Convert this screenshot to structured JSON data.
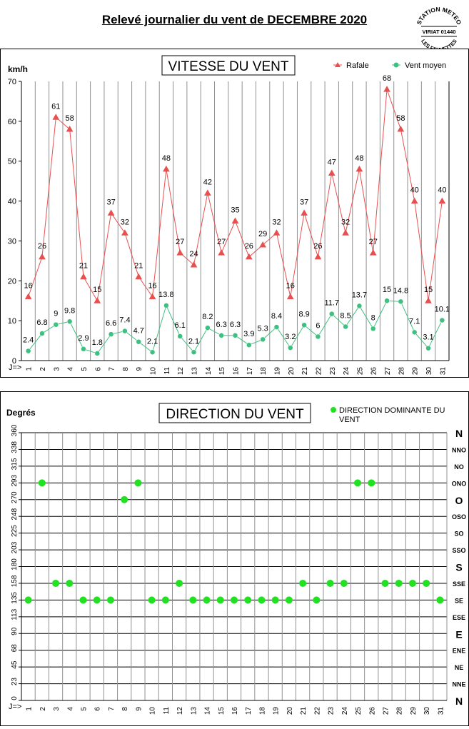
{
  "page_title": "Relevé journalier du vent de DECEMBRE 2020",
  "stamp": {
    "top": "STATION METEO",
    "middle": "VIRIAT 01440",
    "bottom": "LES FAUVETTES"
  },
  "colors": {
    "rafale": "#e85050",
    "vent_moyen": "#40c080",
    "direction": "#22e022",
    "grid": "#000000"
  },
  "chart_data": [
    {
      "type": "line",
      "title": "VITESSE DU VENT",
      "ylabel": "km/h",
      "xlabel": "J=>",
      "ylim": [
        0,
        70
      ],
      "yticks": [
        0,
        10,
        20,
        30,
        40,
        50,
        60,
        70
      ],
      "grid": "vertical lines per day",
      "legend_position": "top-right",
      "x": [
        1,
        2,
        3,
        4,
        5,
        6,
        7,
        8,
        9,
        10,
        11,
        12,
        13,
        14,
        15,
        16,
        17,
        18,
        19,
        20,
        21,
        22,
        23,
        24,
        25,
        26,
        27,
        28,
        29,
        30,
        31
      ],
      "series": [
        {
          "name": "Rafale",
          "marker": "triangle",
          "values": [
            16,
            26,
            61,
            58,
            21,
            15,
            37,
            32,
            21,
            16,
            48,
            27,
            24,
            42,
            27,
            35,
            26,
            29,
            32,
            16,
            37,
            26,
            47,
            32,
            48,
            27,
            68,
            58,
            40,
            15,
            40
          ],
          "labels": [
            "16",
            "26",
            "61",
            "58",
            "21",
            "15",
            "37",
            "32",
            "21",
            "16",
            "48",
            "27",
            "24",
            "42",
            "27",
            "35",
            "26",
            "29",
            "32",
            "16",
            "37",
            "26",
            "47",
            "32",
            "48",
            "27",
            "68",
            "58",
            "40",
            "15",
            "40"
          ]
        },
        {
          "name": "Vent moyen",
          "marker": "circle",
          "values": [
            2.4,
            6.8,
            9,
            9.8,
            2.9,
            1.8,
            6.6,
            7.4,
            4.7,
            2.1,
            13.8,
            6.1,
            2.1,
            8.2,
            6.3,
            6.3,
            3.9,
            5.3,
            8.4,
            3.2,
            8.9,
            6,
            11.7,
            8.5,
            13.7,
            8,
            15,
            14.8,
            7.1,
            3.1,
            10.1
          ],
          "labels": [
            "2.4",
            "6.8",
            "9",
            "9.8",
            "2.9",
            "1.8",
            "6.6",
            "7.4",
            "4.7",
            "2.1",
            "13.8",
            "6.1",
            "2.1",
            "8.2",
            "6.3",
            "6.3",
            "3.9",
            "5.3",
            "8.4",
            "3.2",
            "8.9",
            "6",
            "11.7",
            "8.5",
            "13.7",
            "8",
            "15",
            "14.8",
            "7.1",
            "3.1",
            "10.1"
          ]
        }
      ]
    },
    {
      "type": "scatter",
      "title": "DIRECTION DU VENT",
      "ylabel": "Degrés",
      "xlabel": "J=>",
      "ylim": [
        0,
        360
      ],
      "yticks": [
        0,
        23,
        45,
        68,
        90,
        113,
        135,
        158,
        180,
        203,
        225,
        248,
        270,
        293,
        315,
        338,
        360
      ],
      "ytick_values": [
        0,
        22.5,
        45,
        67.5,
        90,
        112.5,
        135,
        157.5,
        180,
        202.5,
        225,
        247.5,
        270,
        292.5,
        315,
        337.5,
        360
      ],
      "direction_labels": [
        "N",
        "NNE",
        "NE",
        "ENE",
        "E",
        "ESE",
        "SE",
        "SSE",
        "S",
        "SSO",
        "SO",
        "OSO",
        "O",
        "ONO",
        "NO",
        "NNO",
        "N"
      ],
      "grid": "horizontal and vertical",
      "legend_position": "top-right",
      "x": [
        1,
        2,
        3,
        4,
        5,
        6,
        7,
        8,
        9,
        10,
        11,
        12,
        13,
        14,
        15,
        16,
        17,
        18,
        19,
        20,
        21,
        22,
        23,
        24,
        25,
        26,
        27,
        28,
        29,
        30,
        31
      ],
      "series": [
        {
          "name": "DIRECTION DOMINANTE DU VENT",
          "values": [
            135,
            292.5,
            157.5,
            157.5,
            135,
            135,
            135,
            270,
            292.5,
            135,
            135,
            157.5,
            135,
            135,
            135,
            135,
            135,
            135,
            135,
            135,
            157.5,
            135,
            157.5,
            157.5,
            292.5,
            292.5,
            157.5,
            157.5,
            157.5,
            157.5,
            135
          ]
        }
      ]
    }
  ]
}
